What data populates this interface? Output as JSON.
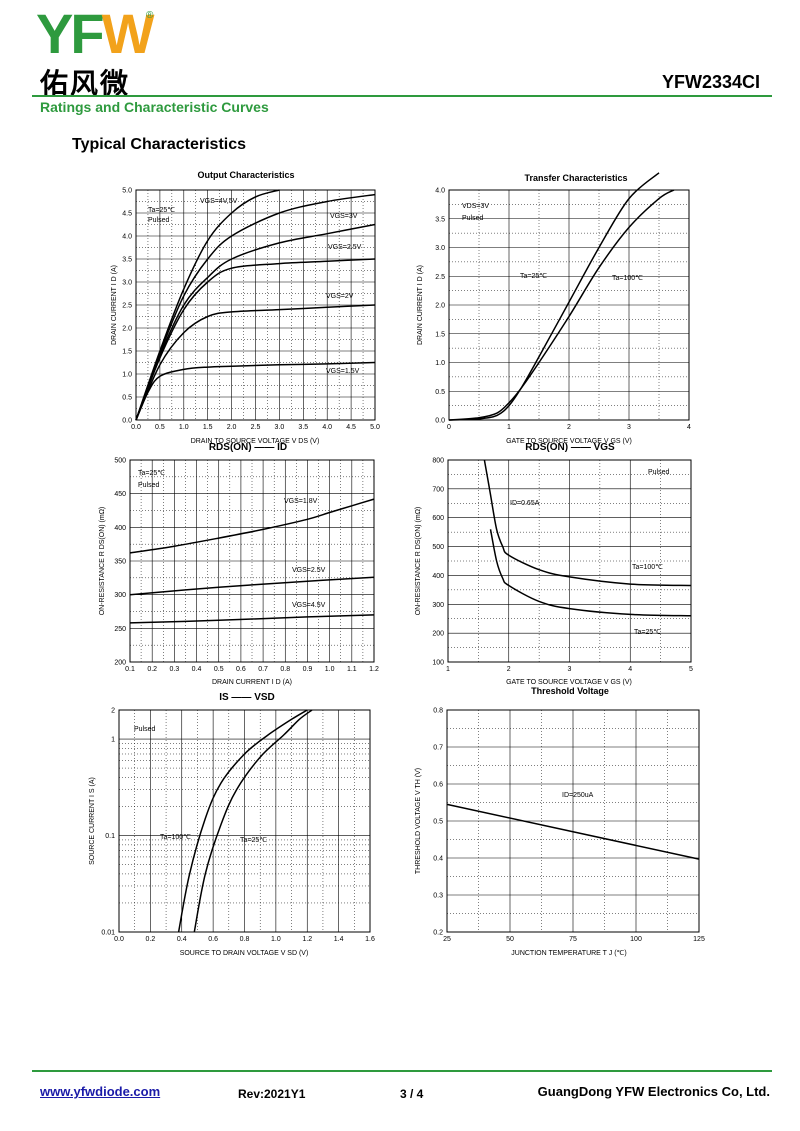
{
  "header": {
    "logo_letters": "YF",
    "logo_letter_w": "W",
    "logo_reg": "®",
    "logo_cn": "佑风微",
    "part_number": "YFW2334CI",
    "section": "Ratings and Characteristic Curves",
    "heading": "Typical Characteristics"
  },
  "footer": {
    "website": "www.yfwdiode.com",
    "revision": "Rev:2021Y1",
    "page": "3 / 4",
    "company": "GuangDong YFW Electronics Co, Ltd."
  },
  "colors": {
    "brand_green": "#2e9a3e",
    "logo_orange": "#f2a21b",
    "link_blue": "#1a1aa8"
  },
  "chart_data": [
    {
      "type": "line",
      "title": "Output Characteristics",
      "xlabel": "DRAIN TO SOURCE VOLTAGE V_DS (V)",
      "ylabel": "DRAIN CURRENT I_D (A)",
      "xlim": [
        0,
        5
      ],
      "ylim": [
        0,
        5
      ],
      "xticks": [
        "0.0",
        "0.5",
        "1.0",
        "1.5",
        "2.0",
        "2.5",
        "3.0",
        "3.5",
        "4.0",
        "4.5",
        "5.0"
      ],
      "yticks": [
        "0.0",
        "0.5",
        "1.0",
        "1.5",
        "2.0",
        "2.5",
        "3.0",
        "3.5",
        "4.0",
        "4.5",
        "5.0"
      ],
      "annotations": [
        "Ta=25℃",
        "Pulsed"
      ],
      "series": [
        {
          "name": "VGS=4V,5V",
          "x": [
            0,
            0.5,
            1,
            1.5,
            2,
            2.5,
            3
          ],
          "y": [
            0,
            1.5,
            2.85,
            3.9,
            4.5,
            4.85,
            5.0
          ]
        },
        {
          "name": "VGS=3V",
          "x": [
            0,
            0.5,
            1,
            1.5,
            2,
            3,
            4,
            5
          ],
          "y": [
            0,
            1.45,
            2.7,
            3.5,
            4.0,
            4.5,
            4.75,
            4.9
          ]
        },
        {
          "name": "VGS=2.5V",
          "x": [
            0,
            0.5,
            1,
            1.5,
            2,
            3,
            4,
            5
          ],
          "y": [
            0,
            1.4,
            2.5,
            3.1,
            3.5,
            3.85,
            4.05,
            4.25
          ]
        },
        {
          "name": "VGS=2V",
          "x": [
            0,
            0.5,
            1,
            1.5,
            2,
            3,
            4,
            5
          ],
          "y": [
            0,
            1.35,
            2.4,
            3.0,
            3.3,
            3.4,
            3.45,
            3.5
          ]
        },
        {
          "name": "VGS=2V",
          "x": [
            0,
            0.5,
            1,
            1.5,
            2,
            3,
            4,
            5
          ],
          "y": [
            0,
            1.2,
            1.9,
            2.25,
            2.35,
            2.4,
            2.45,
            2.5
          ]
        },
        {
          "name": "VGS=1.5V",
          "x": [
            0,
            0.25,
            0.5,
            1,
            1.5,
            2,
            3,
            4,
            5
          ],
          "y": [
            0,
            0.6,
            0.95,
            1.1,
            1.15,
            1.17,
            1.2,
            1.22,
            1.25
          ]
        }
      ]
    },
    {
      "type": "line",
      "title": "Transfer Characteristics",
      "xlabel": "GATE TO SOURCE VOLTAGE V_GS (V)",
      "ylabel": "DRAIN CURRENT I_D (A)",
      "xlim": [
        0,
        4
      ],
      "ylim": [
        0,
        4
      ],
      "xticks": [
        "0",
        "1",
        "2",
        "3",
        "4"
      ],
      "yticks": [
        "0.0",
        "0.5",
        "1.0",
        "1.5",
        "2.0",
        "2.5",
        "3.0",
        "3.5",
        "4.0"
      ],
      "annotations": [
        "VDS=3V",
        "Pulsed"
      ],
      "series": [
        {
          "name": "Ta=25℃",
          "x": [
            0,
            0.5,
            0.8,
            1.0,
            1.2,
            1.5,
            2.0,
            2.5,
            3.0,
            3.5
          ],
          "y": [
            0,
            0.02,
            0.08,
            0.25,
            0.55,
            1.1,
            2.05,
            3.0,
            3.85,
            4.3
          ]
        },
        {
          "name": "Ta=100℃",
          "x": [
            0,
            0.5,
            0.8,
            1.0,
            1.2,
            1.5,
            2.0,
            2.5,
            3.0,
            3.5,
            3.75
          ],
          "y": [
            0,
            0.04,
            0.12,
            0.3,
            0.55,
            1.0,
            1.8,
            2.65,
            3.35,
            3.85,
            4.0
          ]
        }
      ]
    },
    {
      "type": "line",
      "title": "RDS(ON) —— ID",
      "xlabel": "DRAIN CURRENT I_D (A)",
      "ylabel": "ON-RESISTANCE R_DS(ON) (mΩ)",
      "xlim": [
        0.1,
        1.2
      ],
      "ylim": [
        200,
        500
      ],
      "xticks": [
        "0.1",
        "0.2",
        "0.3",
        "0.4",
        "0.5",
        "0.6",
        "0.7",
        "0.8",
        "0.9",
        "1.0",
        "1.1",
        "1.2"
      ],
      "yticks": [
        "200",
        "250",
        "300",
        "350",
        "400",
        "450",
        "500"
      ],
      "annotations": [
        "Ta=25℃",
        "Pulsed"
      ],
      "series": [
        {
          "name": "VGS=1.8V",
          "x": [
            0.1,
            0.3,
            0.5,
            0.7,
            0.9,
            1.0,
            1.1,
            1.2
          ],
          "y": [
            362,
            372,
            384,
            397,
            412,
            422,
            432,
            442
          ]
        },
        {
          "name": "VGS=2.5V",
          "x": [
            0.1,
            0.5,
            0.9,
            1.2
          ],
          "y": [
            300,
            311,
            320,
            326
          ]
        },
        {
          "name": "VGS=4.5V",
          "x": [
            0.1,
            0.5,
            0.9,
            1.2
          ],
          "y": [
            258,
            262,
            267,
            270
          ]
        }
      ]
    },
    {
      "type": "line",
      "title": "RDS(ON) —— VGS",
      "xlabel": "GATE TO SOURCE VOLTAGE V_GS (V)",
      "ylabel": "ON-RESISTANCE R_DS(ON) (mΩ)",
      "xlim": [
        1,
        5
      ],
      "ylim": [
        100,
        800
      ],
      "xticks": [
        "1",
        "2",
        "3",
        "4",
        "5"
      ],
      "yticks": [
        "100",
        "200",
        "300",
        "400",
        "500",
        "600",
        "700",
        "800"
      ],
      "annotations": [
        "Pulsed",
        "ID=0.65A"
      ],
      "series": [
        {
          "name": "Ta=100℃",
          "x": [
            1.6,
            1.7,
            1.8,
            1.9,
            2.0,
            2.5,
            3.0,
            4.0,
            5.0
          ],
          "y": [
            800,
            680,
            560,
            500,
            470,
            420,
            395,
            370,
            365
          ]
        },
        {
          "name": "Ta=25℃",
          "x": [
            1.7,
            1.8,
            1.9,
            2.0,
            2.5,
            3.0,
            4.0,
            5.0
          ],
          "y": [
            560,
            450,
            390,
            365,
            310,
            285,
            265,
            260
          ]
        }
      ]
    },
    {
      "type": "line",
      "title": "IS —— VSD",
      "xlabel": "SOURCE TO DRAIN VOLTAGE V_SD (V)",
      "ylabel": "SOURCE CURRENT I_S (A)",
      "xlim": [
        0,
        1.6
      ],
      "ylim": [
        0.01,
        2
      ],
      "yscale": "log",
      "xticks": [
        "0.0",
        "0.2",
        "0.4",
        "0.6",
        "0.8",
        "1.0",
        "1.2",
        "1.4",
        "1.6"
      ],
      "yticks": [
        "0.01",
        "0.1",
        "1",
        "2"
      ],
      "annotations": [
        "Pulsed"
      ],
      "series": [
        {
          "name": "Ta=100℃",
          "x": [
            0.38,
            0.45,
            0.55,
            0.65,
            0.8,
            0.95,
            1.1,
            1.2
          ],
          "y": [
            0.01,
            0.04,
            0.15,
            0.35,
            0.7,
            1.1,
            1.6,
            2.0
          ]
        },
        {
          "name": "Ta=25℃",
          "x": [
            0.48,
            0.55,
            0.65,
            0.75,
            0.9,
            1.05,
            1.15,
            1.23
          ],
          "y": [
            0.01,
            0.04,
            0.13,
            0.3,
            0.65,
            1.1,
            1.6,
            2.0
          ]
        }
      ]
    },
    {
      "type": "line",
      "title": "Threshold Voltage",
      "xlabel": "JUNCTION TEMPERATURE T_J (℃)",
      "ylabel": "THRESHOLD VOLTAGE V_TH (V)",
      "xlim": [
        25,
        125
      ],
      "ylim": [
        0.2,
        0.8
      ],
      "xticks": [
        "25",
        "50",
        "75",
        "100",
        "125"
      ],
      "yticks": [
        "0.2",
        "0.3",
        "0.4",
        "0.5",
        "0.6",
        "0.7",
        "0.8"
      ],
      "annotations": [
        "ID=250uA"
      ],
      "series": [
        {
          "name": "",
          "x": [
            25,
            125
          ],
          "y": [
            0.545,
            0.397
          ]
        }
      ]
    }
  ]
}
